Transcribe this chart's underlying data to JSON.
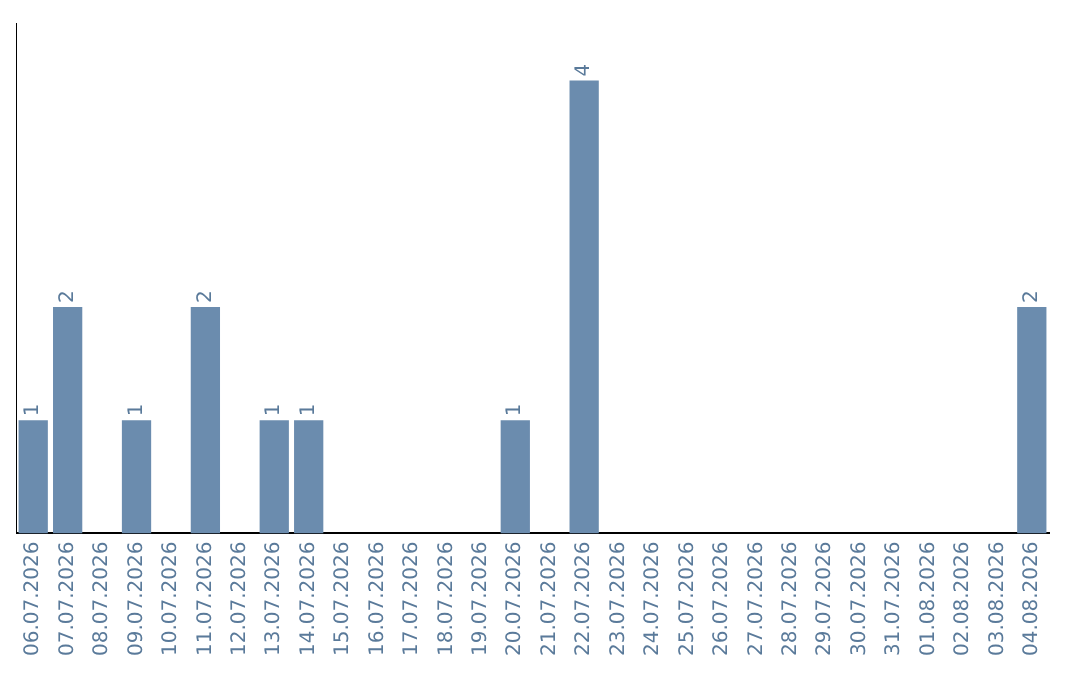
{
  "chart_data": {
    "type": "bar",
    "categories": [
      "06.07.2026",
      "07.07.2026",
      "08.07.2026",
      "09.07.2026",
      "10.07.2026",
      "11.07.2026",
      "12.07.2026",
      "13.07.2026",
      "14.07.2026",
      "15.07.2026",
      "16.07.2026",
      "17.07.2026",
      "18.07.2026",
      "19.07.2026",
      "20.07.2026",
      "21.07.2026",
      "22.07.2026",
      "23.07.2026",
      "24.07.2026",
      "25.07.2026",
      "26.07.2026",
      "27.07.2026",
      "28.07.2026",
      "29.07.2026",
      "30.07.2026",
      "31.07.2026",
      "01.08.2026",
      "02.08.2026",
      "03.08.2026",
      "04.08.2026"
    ],
    "values": [
      1,
      2,
      0,
      1,
      0,
      2,
      0,
      1,
      1,
      0,
      0,
      0,
      0,
      0,
      1,
      0,
      4,
      0,
      0,
      0,
      0,
      0,
      0,
      0,
      0,
      0,
      0,
      0,
      0,
      2
    ],
    "value_labels": [
      "1",
      "2",
      null,
      "1",
      null,
      "2",
      null,
      "1",
      "1",
      null,
      null,
      null,
      null,
      null,
      "1",
      null,
      "4",
      null,
      null,
      null,
      null,
      null,
      null,
      null,
      null,
      null,
      null,
      null,
      null,
      "2"
    ],
    "color": "#6b8cae",
    "grid": false,
    "legend": false
  }
}
